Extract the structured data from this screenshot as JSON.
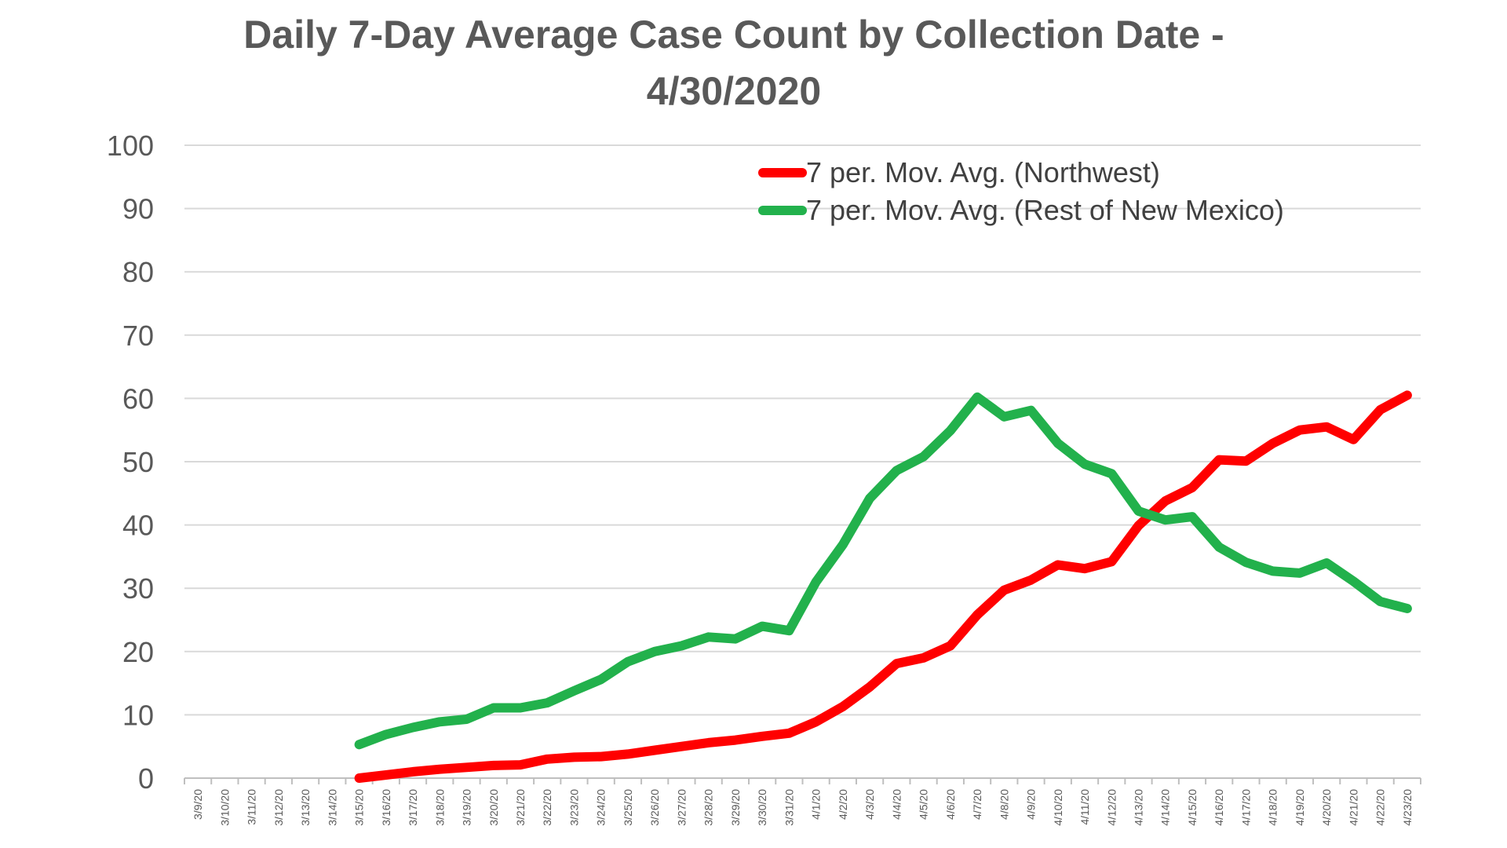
{
  "chart_data": {
    "type": "line",
    "title_line1": "Daily 7-Day Average Case Count by Collection Date -",
    "title_line2": "4/30/2020",
    "xlabel": "",
    "ylabel": "",
    "ylim": [
      0,
      100
    ],
    "yticks": [
      0,
      10,
      20,
      30,
      40,
      50,
      60,
      70,
      80,
      90,
      100
    ],
    "grid": true,
    "legend_position": "top-right",
    "x": [
      "3/9/20",
      "3/10/20",
      "3/11/20",
      "3/12/20",
      "3/13/20",
      "3/14/20",
      "3/15/20",
      "3/16/20",
      "3/17/20",
      "3/18/20",
      "3/19/20",
      "3/20/20",
      "3/21/20",
      "3/22/20",
      "3/23/20",
      "3/24/20",
      "3/25/20",
      "3/26/20",
      "3/27/20",
      "3/28/20",
      "3/29/20",
      "3/30/20",
      "3/31/20",
      "4/1/20",
      "4/2/20",
      "4/3/20",
      "4/4/20",
      "4/5/20",
      "4/6/20",
      "4/7/20",
      "4/8/20",
      "4/9/20",
      "4/10/20",
      "4/11/20",
      "4/12/20",
      "4/13/20",
      "4/14/20",
      "4/15/20",
      "4/16/20",
      "4/17/20",
      "4/18/20",
      "4/19/20",
      "4/20/20",
      "4/21/20",
      "4/22/20",
      "4/23/20"
    ],
    "series": [
      {
        "name": "7 per. Mov. Avg. (Northwest)",
        "color": "#ff0000",
        "values": [
          null,
          null,
          null,
          null,
          null,
          null,
          0,
          0.5,
          1,
          1.4,
          1.7,
          2,
          2.1,
          3,
          3.3,
          3.4,
          3.8,
          4.4,
          5,
          5.6,
          6,
          6.6,
          7.1,
          8.9,
          11.3,
          14.4,
          18.1,
          19,
          20.9,
          25.8,
          29.7,
          31.3,
          33.7,
          33.1,
          34.2,
          39.9,
          43.8,
          45.9,
          50.3,
          50.1,
          52.9,
          55,
          55.5,
          53.5,
          58.2,
          60.5
        ]
      },
      {
        "name": "7 per. Mov. Avg. (Rest of New Mexico)",
        "color": "#22b14c",
        "values": [
          null,
          null,
          null,
          null,
          null,
          null,
          5.3,
          6.9,
          8,
          8.9,
          9.3,
          11.1,
          11.1,
          11.9,
          13.8,
          15.6,
          18.4,
          20,
          20.9,
          22.3,
          22,
          24,
          23.3,
          31,
          36.9,
          44.2,
          48.6,
          50.8,
          54.9,
          60.2,
          57.1,
          58.1,
          52.9,
          49.6,
          48.1,
          42.2,
          40.8,
          41.3,
          36.5,
          34.1,
          32.7,
          32.4,
          34,
          31.1,
          27.9,
          26.8
        ]
      }
    ]
  }
}
